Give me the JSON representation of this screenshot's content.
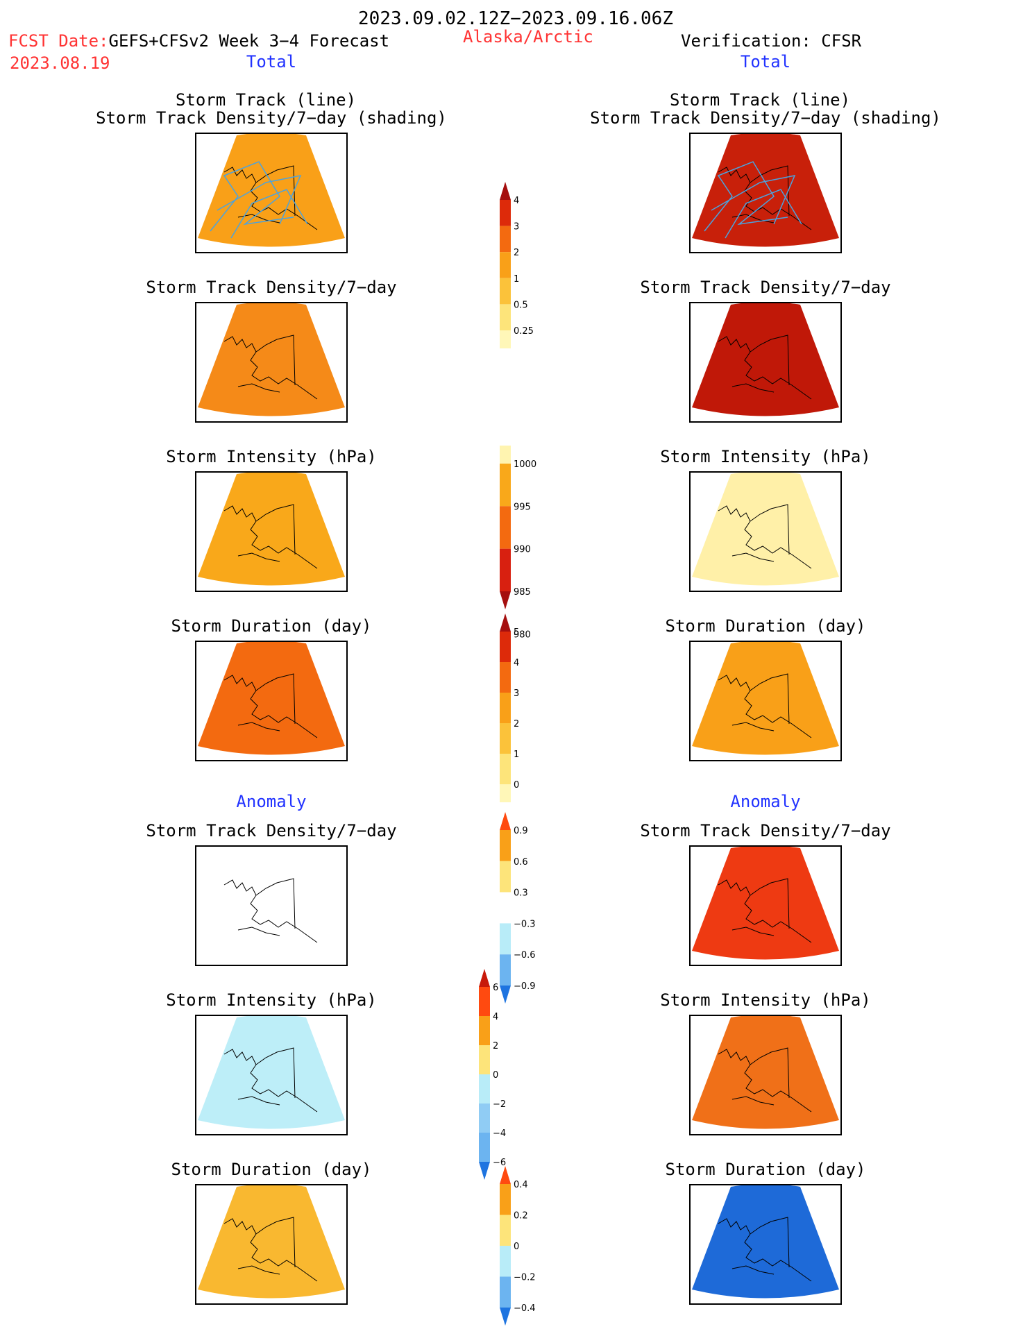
{
  "header": {
    "period": "2023.09.02.12Z−2023.09.16.06Z",
    "fcst_label": "FCST Date:",
    "fcst_source": "GEFS+CFSv2 Week 3−4 Forecast",
    "region": "Alaska/Arctic",
    "verification": "Verification: CFSR",
    "fcst_date": "2023.08.19",
    "left_total": "Total",
    "right_total": "Total",
    "left_anomaly": "Anomaly",
    "right_anomaly": "Anomaly"
  },
  "panel_titles": {
    "track_line": "Storm Track (line)",
    "track_shading": "Storm Track Density/7−day (shading)",
    "density": "Storm Track Density/7−day",
    "intensity": "Storm Intensity (hPa)",
    "duration": "Storm Duration (day)"
  },
  "colorbars": {
    "density": {
      "labels": [
        "4",
        "3",
        "2",
        "1",
        "0.5",
        "0.25"
      ],
      "colors": [
        "#a50f0f",
        "#dd2a0a",
        "#f36a10",
        "#f9a018",
        "#fbc23a",
        "#fde47a",
        "#fff7b8"
      ]
    },
    "intensity": {
      "labels": [
        "1000",
        "995",
        "990",
        "985",
        "980"
      ],
      "colors": [
        "#fff4b0",
        "#f9a81a",
        "#f36a10",
        "#d82010",
        "#a50f0f"
      ]
    },
    "duration": {
      "labels": [
        "5",
        "4",
        "3",
        "2",
        "1",
        "0"
      ],
      "colors": [
        "#a50f0f",
        "#dd2a0a",
        "#f36a10",
        "#f9a018",
        "#fbc23a",
        "#fde47a",
        "#fff7b8"
      ]
    },
    "anom_density": {
      "labels": [
        "0.9",
        "0.6",
        "0.3",
        "−0.3",
        "−0.6",
        "−0.9"
      ],
      "colors": [
        "#ff4a10",
        "#f9a018",
        "#fde47a",
        "#ffffff",
        "#b8ecf8",
        "#6cb4f0",
        "#1e74e0"
      ]
    },
    "anom_intensity": {
      "labels": [
        "6",
        "4",
        "2",
        "0",
        "−2",
        "−4",
        "−6"
      ],
      "colors": [
        "#c81a0a",
        "#ff4a10",
        "#f9a018",
        "#fde47a",
        "#b8ecf8",
        "#90ccf4",
        "#6cb4f0",
        "#1e74e0"
      ]
    },
    "anom_duration": {
      "labels": [
        "0.4",
        "0.2",
        "0",
        "−0.2",
        "−0.4"
      ],
      "colors": [
        "#ff4a10",
        "#f9a018",
        "#fde47a",
        "#b8ecf8",
        "#6cb4f0",
        "#1e74e0"
      ]
    }
  },
  "map_fills": {
    "fc_track": "#f9a018",
    "obs_track": "#c8200a",
    "fc_density": "#f58a18",
    "obs_density": "#c01808",
    "fc_intensity": "#f9a81a",
    "obs_intensity": "#fff0a8",
    "fc_duration": "#f36a10",
    "obs_duration": "#f9a018",
    "fc_anom_density": "#ffffff",
    "obs_anom_density": "#ee3a12",
    "fc_anom_intensity": "#bdeef8",
    "obs_anom_intensity": "#f07018",
    "fc_anom_duration": "#f9b830",
    "obs_anom_duration": "#1e6ad8"
  }
}
